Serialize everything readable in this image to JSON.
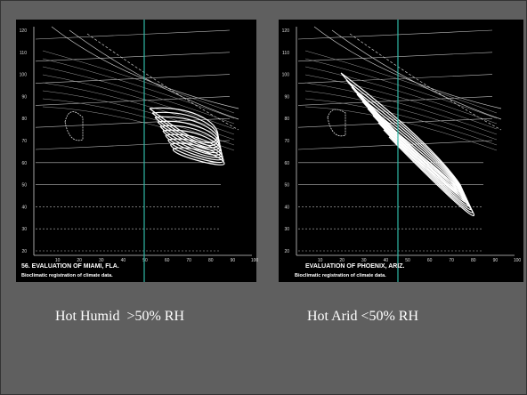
{
  "slide": {
    "panels": [
      {
        "caption_title": "56. EVALUATION OF MIAMI, FLA.",
        "caption_sub": "Bioclimatic registration of climate data.",
        "y_ticks": [
          120,
          110,
          100,
          90,
          80,
          70,
          60,
          50,
          40,
          30,
          20
        ],
        "x_ticks": [
          10,
          20,
          30,
          40,
          50,
          60,
          70,
          80,
          90,
          100
        ],
        "label": "Hot Humid  >50% RH"
      },
      {
        "caption_title": "EVALUATION OF PHOENIX, ARIZ.",
        "caption_sub": "Bioclimatic registration of climate data.",
        "y_ticks": [
          120,
          110,
          100,
          90,
          80,
          70,
          60,
          50,
          40,
          30,
          20
        ],
        "x_ticks": [
          10,
          20,
          30,
          40,
          50,
          60,
          70,
          80,
          90,
          100
        ],
        "label": "Hot Arid <50% RH"
      }
    ]
  }
}
